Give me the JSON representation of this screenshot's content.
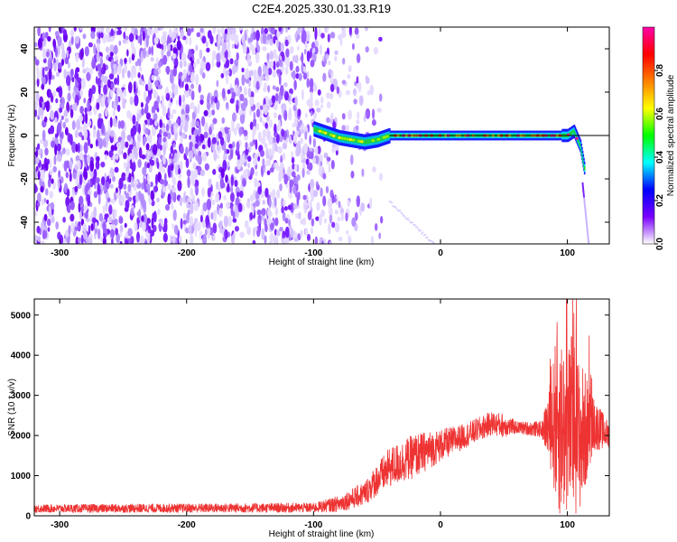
{
  "title": "C2E4.2025.330.01.33.R19",
  "chart_data": [
    {
      "type": "heatmap",
      "xlabel": "Height of straight line (km)",
      "ylabel": "Frequency (Hz)",
      "xlim": [
        -320,
        133
      ],
      "ylim": [
        -50,
        50
      ],
      "xticks": [
        -300,
        -200,
        -100,
        0,
        100
      ],
      "yticks": [
        -40,
        -20,
        0,
        20,
        40
      ],
      "colorbar": {
        "label": "Normalized spectral amplitude",
        "range": [
          0,
          1
        ],
        "ticks": [
          0.0,
          0.2,
          0.4,
          0.6,
          0.8
        ],
        "tick_labels": [
          "0.0",
          "0.2",
          "0.4",
          "0.6",
          "0.8"
        ],
        "colors": [
          "#ffffff",
          "#7a00ff",
          "#0000ff",
          "#00ffff",
          "#00ff00",
          "#ffff00",
          "#ff8000",
          "#ff0000",
          "#ff00aa"
        ]
      },
      "noise_region_x": [
        -320,
        -55
      ],
      "ridge": [
        {
          "x": -100,
          "f": 3
        },
        {
          "x": -90,
          "f": 1
        },
        {
          "x": -80,
          "f": -1
        },
        {
          "x": -70,
          "f": -2
        },
        {
          "x": -60,
          "f": -3
        },
        {
          "x": -50,
          "f": -2
        },
        {
          "x": -40,
          "f": 0
        },
        {
          "x": 0,
          "f": 0
        },
        {
          "x": 50,
          "f": 0
        },
        {
          "x": 100,
          "f": 0
        },
        {
          "x": 105,
          "f": 2
        },
        {
          "x": 110,
          "f": -5
        },
        {
          "x": 113,
          "f": -15
        }
      ],
      "reference_line_f": 0
    },
    {
      "type": "line",
      "xlabel": "Height of straight line (km)",
      "ylabel": "SNR (10 * v/v)",
      "xlim": [
        -320,
        133
      ],
      "ylim": [
        0,
        5400
      ],
      "xticks": [
        -300,
        -200,
        -100,
        0,
        100
      ],
      "yticks": [
        0,
        1000,
        2000,
        3000,
        4000,
        5000
      ],
      "color": "#ee3333",
      "envelope": {
        "x": [
          -320,
          -100,
          -80,
          -60,
          -50,
          -40,
          -20,
          0,
          20,
          40,
          50,
          60,
          80,
          88,
          92,
          96,
          100,
          104,
          108,
          112,
          116,
          120,
          133
        ],
        "mean": [
          180,
          200,
          300,
          550,
          900,
          1200,
          1500,
          1750,
          2000,
          2300,
          2250,
          2200,
          2150,
          2300,
          2400,
          2200,
          2100,
          2300,
          2000,
          2000,
          2200,
          2300,
          2000
        ],
        "spread": [
          100,
          120,
          200,
          300,
          400,
          500,
          550,
          400,
          300,
          300,
          300,
          150,
          200,
          1300,
          2500,
          2200,
          2000,
          2400,
          2000,
          1800,
          1200,
          700,
          300
        ]
      }
    }
  ]
}
